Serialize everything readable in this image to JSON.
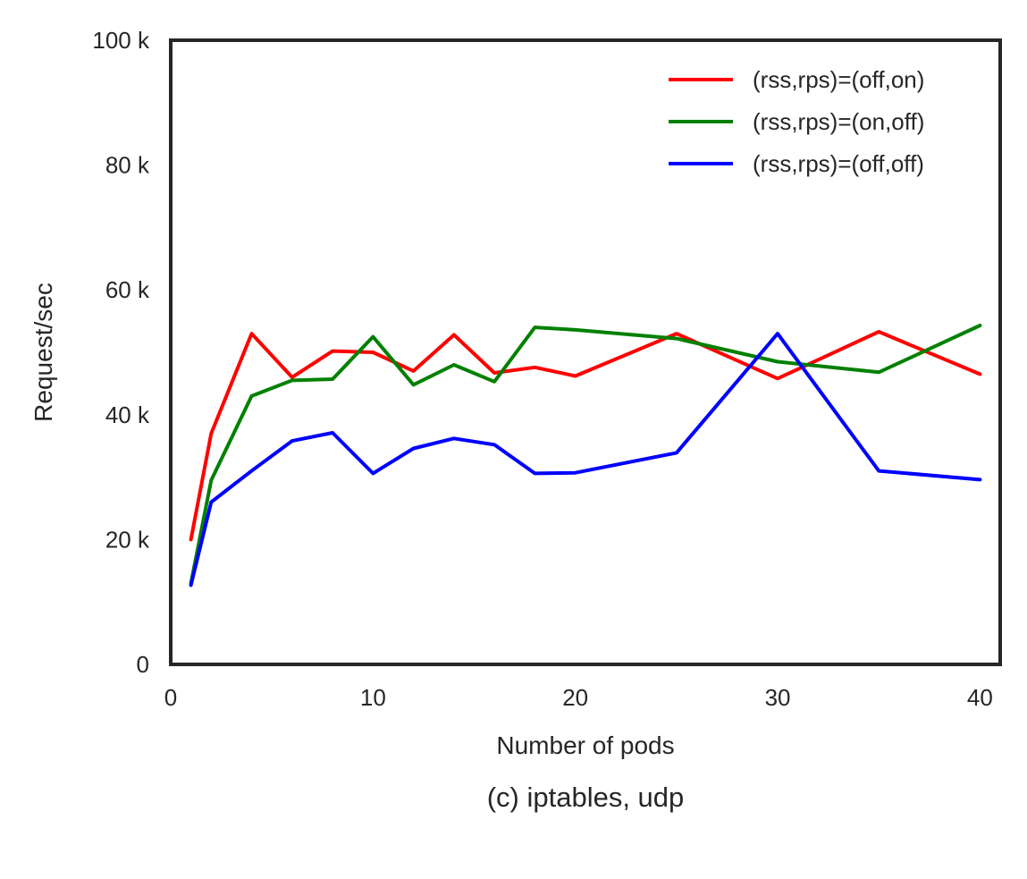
{
  "caption": "(c) iptables, udp",
  "chart_data": {
    "type": "line",
    "xlabel": "Number of pods",
    "ylabel": "Request/sec",
    "xlim": [
      0,
      41
    ],
    "ylim": [
      0,
      100000
    ],
    "x_ticks": [
      0,
      10,
      20,
      30,
      40
    ],
    "x_tick_labels": [
      "0",
      "10",
      "20",
      "30",
      "40"
    ],
    "y_ticks": [
      0,
      20000,
      40000,
      60000,
      80000,
      100000
    ],
    "y_tick_labels": [
      "0",
      "20 k",
      "40 k",
      "60 k",
      "80 k",
      "100 k"
    ],
    "grid": false,
    "legend_position": "top-right",
    "x": [
      1,
      2,
      4,
      6,
      8,
      10,
      12,
      14,
      16,
      18,
      20,
      25,
      30,
      35,
      40
    ],
    "series": [
      {
        "name": "(rss,rps)=(off,on)",
        "color": "#ff0000",
        "values": [
          20000,
          37000,
          53000,
          46000,
          50200,
          50000,
          47000,
          52800,
          46700,
          47600,
          46200,
          53000,
          45800,
          53300,
          46500
        ]
      },
      {
        "name": "(rss,rps)=(on,off)",
        "color": "#008000",
        "values": [
          13000,
          29500,
          43000,
          45500,
          45700,
          52500,
          44800,
          48000,
          45300,
          54000,
          53600,
          52200,
          48500,
          46800,
          54300
        ]
      },
      {
        "name": "(rss,rps)=(off,off)",
        "color": "#0000ff",
        "values": [
          12700,
          26000,
          31000,
          35800,
          37100,
          30600,
          34600,
          36200,
          35200,
          30600,
          30700,
          33900,
          53000,
          31000,
          29600
        ]
      }
    ]
  }
}
